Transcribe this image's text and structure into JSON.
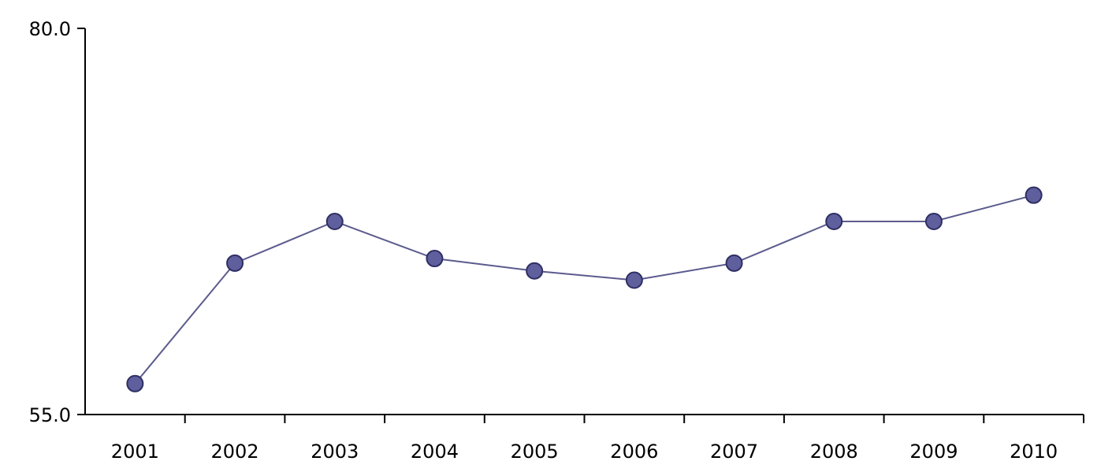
{
  "chart_data": {
    "type": "line",
    "title": "",
    "xlabel": "",
    "ylabel": "",
    "categories": [
      "2001",
      "2002",
      "2003",
      "2004",
      "2005",
      "2006",
      "2007",
      "2008",
      "2009",
      "2010"
    ],
    "series": [
      {
        "values": [
          57.0,
          64.8,
          67.5,
          65.1,
          64.3,
          63.7,
          64.8,
          67.5,
          67.5,
          69.2
        ]
      }
    ],
    "ylim": [
      55.0,
      80.0
    ],
    "y_ticks": [
      "55.0",
      "80.0"
    ],
    "grid": false,
    "colors": {
      "line": "#5b5b8e",
      "marker_fill": "#5f5f9e",
      "marker_stroke": "#2e2e63"
    }
  }
}
